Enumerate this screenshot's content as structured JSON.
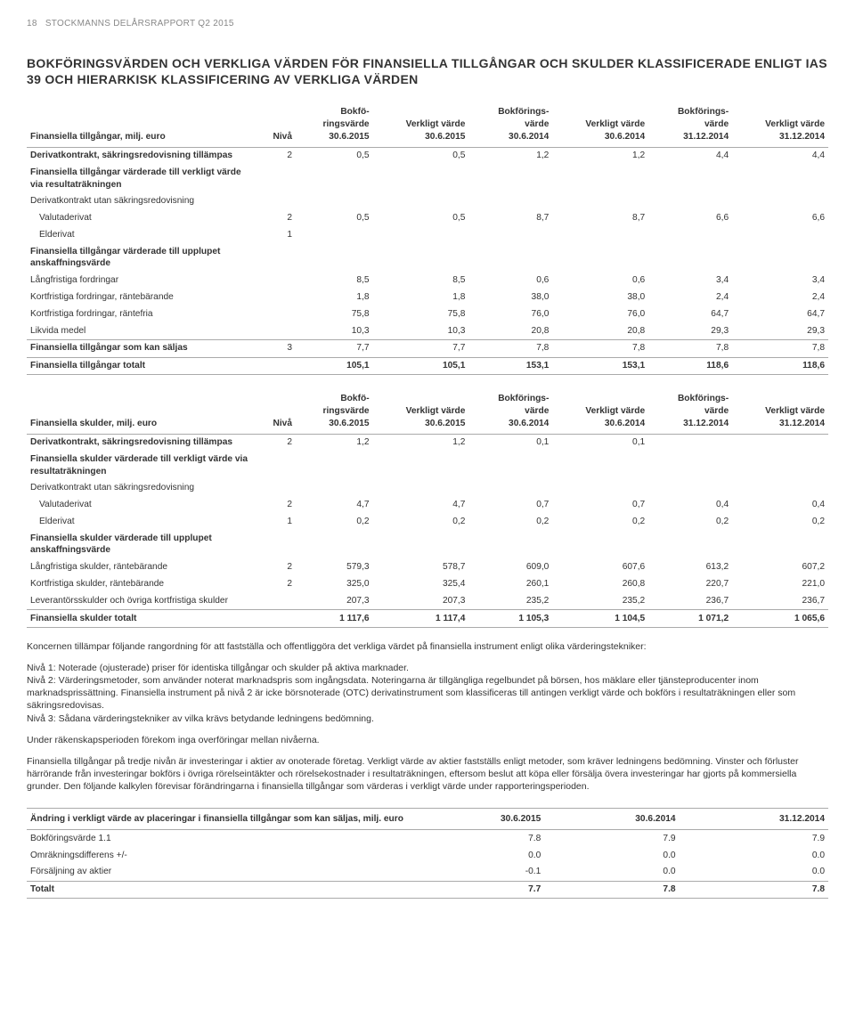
{
  "header": {
    "page_num": "18",
    "doc_title": "STOCKMANNS DELÅRSRAPPORT Q2 2015"
  },
  "main_title": "BOKFÖRINGSVÄRDEN OCH VERKLIGA VÄRDEN FÖR FINANSIELLA TILLGÅNGAR OCH SKULDER KLASSIFICERADE ENLIGT IAS 39 OCH HIERARKISK KLASSIFICERING AV VERKLIGA VÄRDEN",
  "table1": {
    "head": {
      "label": "Finansiella tillgångar, milj. euro",
      "niva": "Nivå",
      "c1": "Bokfö-\nringsvärde\n30.6.2015",
      "c2": "Verkligt värde\n30.6.2015",
      "c3": "Bokförings-\nvärde\n30.6.2014",
      "c4": "Verkligt värde\n30.6.2014",
      "c5": "Bokförings-\nvärde\n31.12.2014",
      "c6": "Verkligt värde\n31.12.2014"
    },
    "rows": [
      {
        "cls": "section",
        "label": "Derivatkontrakt, säkringsredovisning tillämpas",
        "niva": "2",
        "v": [
          "0,5",
          "0,5",
          "1,2",
          "1,2",
          "4,4",
          "4,4"
        ]
      },
      {
        "cls": "section",
        "label": "Finansiella tillgångar värderade till verkligt värde via resultaträkningen",
        "niva": "",
        "v": [
          "",
          "",
          "",
          "",
          "",
          ""
        ]
      },
      {
        "cls": "",
        "label": "Derivatkontrakt utan säkringsredovisning",
        "niva": "",
        "v": [
          "",
          "",
          "",
          "",
          "",
          ""
        ]
      },
      {
        "cls": "indent",
        "label": "Valutaderivat",
        "niva": "2",
        "v": [
          "0,5",
          "0,5",
          "8,7",
          "8,7",
          "6,6",
          "6,6"
        ]
      },
      {
        "cls": "indent",
        "label": "Elderivat",
        "niva": "1",
        "v": [
          "",
          "",
          "",
          "",
          "",
          ""
        ]
      },
      {
        "cls": "section",
        "label": "Finansiella tillgångar värderade till upplupet anskaffningsvärde",
        "niva": "",
        "v": [
          "",
          "",
          "",
          "",
          "",
          ""
        ]
      },
      {
        "cls": "",
        "label": "Långfristiga fordringar",
        "niva": "",
        "v": [
          "8,5",
          "8,5",
          "0,6",
          "0,6",
          "3,4",
          "3,4"
        ]
      },
      {
        "cls": "",
        "label": "Kortfristiga fordringar, räntebärande",
        "niva": "",
        "v": [
          "1,8",
          "1,8",
          "38,0",
          "38,0",
          "2,4",
          "2,4"
        ]
      },
      {
        "cls": "",
        "label": "Kortfristiga fordringar, räntefria",
        "niva": "",
        "v": [
          "75,8",
          "75,8",
          "76,0",
          "76,0",
          "64,7",
          "64,7"
        ]
      },
      {
        "cls": "",
        "label": "Likvida medel",
        "niva": "",
        "v": [
          "10,3",
          "10,3",
          "20,8",
          "20,8",
          "29,3",
          "29,3"
        ]
      },
      {
        "cls": "section border-top",
        "label": "Finansiella tillgångar som kan säljas",
        "niva": "3",
        "v": [
          "7,7",
          "7,7",
          "7,8",
          "7,8",
          "7,8",
          "7,8"
        ]
      },
      {
        "cls": "bold-row border-top border-bot",
        "label": "Finansiella tillgångar totalt",
        "niva": "",
        "v": [
          "105,1",
          "105,1",
          "153,1",
          "153,1",
          "118,6",
          "118,6"
        ]
      }
    ]
  },
  "table2": {
    "head": {
      "label": "Finansiella skulder, milj. euro",
      "niva": "Nivå",
      "c1": "Bokfö-\nringsvärde\n30.6.2015",
      "c2": "Verkligt värde\n30.6.2015",
      "c3": "Bokförings-\nvärde\n30.6.2014",
      "c4": "Verkligt värde\n30.6.2014",
      "c5": "Bokförings-\nvärde\n31.12.2014",
      "c6": "Verkligt värde\n31.12.2014"
    },
    "rows": [
      {
        "cls": "section",
        "label": "Derivatkontrakt, säkringsredovisning tillämpas",
        "niva": "2",
        "v": [
          "1,2",
          "1,2",
          "0,1",
          "0,1",
          "",
          ""
        ]
      },
      {
        "cls": "section",
        "label": "Finansiella skulder värderade till verkligt värde via resultaträkningen",
        "niva": "",
        "v": [
          "",
          "",
          "",
          "",
          "",
          ""
        ]
      },
      {
        "cls": "",
        "label": "Derivatkontrakt utan säkringsredovisning",
        "niva": "",
        "v": [
          "",
          "",
          "",
          "",
          "",
          ""
        ]
      },
      {
        "cls": "indent",
        "label": "Valutaderivat",
        "niva": "2",
        "v": [
          "4,7",
          "4,7",
          "0,7",
          "0,7",
          "0,4",
          "0,4"
        ]
      },
      {
        "cls": "indent",
        "label": "Elderivat",
        "niva": "1",
        "v": [
          "0,2",
          "0,2",
          "0,2",
          "0,2",
          "0,2",
          "0,2"
        ]
      },
      {
        "cls": "section",
        "label": "Finansiella skulder värderade till upplupet anskaffningsvärde",
        "niva": "",
        "v": [
          "",
          "",
          "",
          "",
          "",
          ""
        ]
      },
      {
        "cls": "",
        "label": "Långfristiga skulder, räntebärande",
        "niva": "2",
        "v": [
          "579,3",
          "578,7",
          "609,0",
          "607,6",
          "613,2",
          "607,2"
        ]
      },
      {
        "cls": "",
        "label": "Kortfristiga skulder, räntebärande",
        "niva": "2",
        "v": [
          "325,0",
          "325,4",
          "260,1",
          "260,8",
          "220,7",
          "221,0"
        ]
      },
      {
        "cls": "",
        "label": "Leverantörsskulder och övriga kortfristiga skulder",
        "niva": "",
        "v": [
          "207,3",
          "207,3",
          "235,2",
          "235,2",
          "236,7",
          "236,7"
        ]
      },
      {
        "cls": "bold-row border-top border-bot",
        "label": "Finansiella skulder totalt",
        "niva": "",
        "v": [
          "1 117,6",
          "1 117,4",
          "1 105,3",
          "1 104,5",
          "1 071,2",
          "1 065,6"
        ]
      }
    ]
  },
  "body": {
    "p1": "Koncernen tillämpar följande rangordning för att fastställa och offentliggöra det verkliga värdet på finansiella instrument enligt olika värderingstekniker:",
    "p1a": "Nivå 1: Noterade (ojusterade) priser för identiska tillgångar och skulder på aktiva marknader.",
    "p1b": "Nivå 2: Värderingsmetoder, som använder noterat marknadspris som ingångsdata. Noteringarna är tillgängliga regelbundet på börsen, hos mäklare eller tjänsteproducenter inom marknadsprissättning. Finansiella instrument på nivå 2 är icke börsnoterade (OTC) derivatinstrument som klassificeras till antingen verkligt värde och bokförs i resultaträkningen eller som säkringsredovisas.",
    "p1c": "Nivå 3: Sådana värderingstekniker av vilka krävs betydande ledningens bedömning.",
    "p2": "Under räkenskapsperioden förekom inga overföringar mellan nivåerna.",
    "p3": "Finansiella tillgångar på tredje nivån är investeringar i aktier av onoterade företag. Verkligt värde av aktier fastställs enligt metoder, som kräver ledningens bedömning. Vinster och förluster härrörande från investeringar bokförs i övriga rörelseintäkter och rörelsekostnader i resultaträkningen, eftersom beslut att köpa eller försälja övera investeringar har gjorts på kommersiella grunder. Den följande kalkylen förevisar förändringarna i finansiella tillgångar som värderas i verkligt värde under rapporteringsperioden."
  },
  "table3": {
    "head": {
      "label": "Ändring i verkligt värde av placeringar i finansiella tillgångar som kan säljas, milj. euro",
      "c1": "30.6.2015",
      "c2": "30.6.2014",
      "c3": "31.12.2014"
    },
    "rows": [
      {
        "cls": "",
        "label": "Bokföringsvärde 1.1",
        "v": [
          "7.8",
          "7.9",
          "7.9"
        ]
      },
      {
        "cls": "",
        "label": "Omräkningsdifferens +/-",
        "v": [
          "0.0",
          "0.0",
          "0.0"
        ]
      },
      {
        "cls": "",
        "label": "Försäljning av aktier",
        "v": [
          "-0.1",
          "0.0",
          "0.0"
        ]
      },
      {
        "cls": "bold-row",
        "label": "Totalt",
        "v": [
          "7.7",
          "7.8",
          "7.8"
        ]
      }
    ]
  }
}
